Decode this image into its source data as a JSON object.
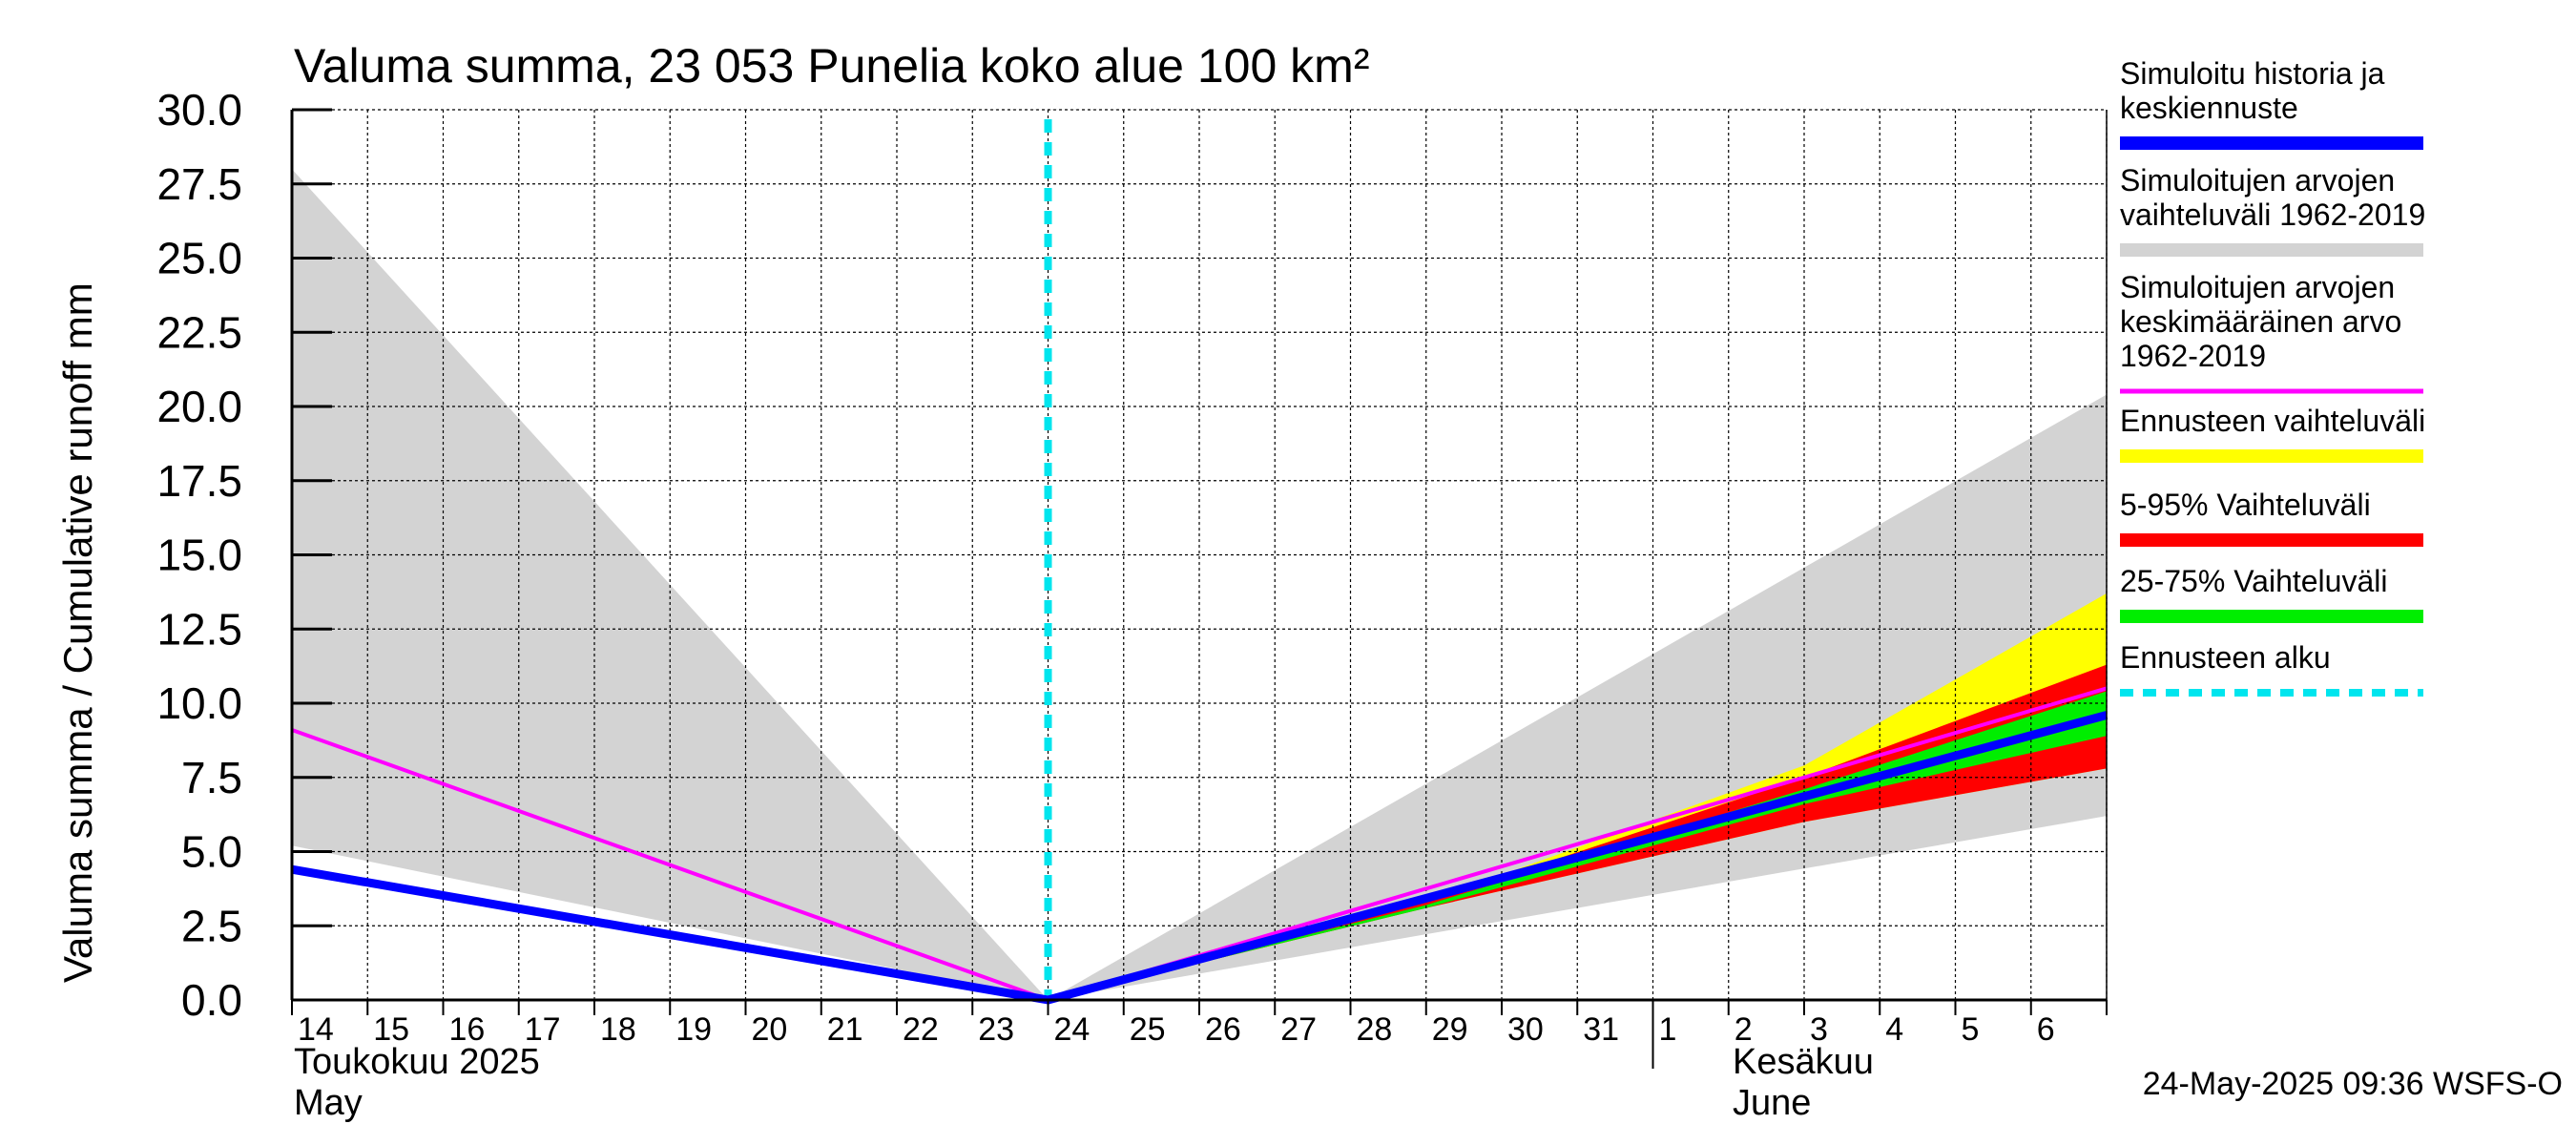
{
  "chart_data": {
    "type": "area",
    "title": "Valuma summa, 23 053 Punelia koko alue 100 km²",
    "ylabel": "Valuma summa / Cumulative runoff    mm",
    "ylim": [
      0,
      30
    ],
    "yticks": [
      "0.0",
      "2.5",
      "5.0",
      "7.5",
      "10.0",
      "12.5",
      "15.0",
      "17.5",
      "20.0",
      "22.5",
      "25.0",
      "27.5",
      "30.0"
    ],
    "xlim": [
      0,
      24
    ],
    "x_tick_labels": [
      {
        "x": 0,
        "label": "14"
      },
      {
        "x": 1,
        "label": "15"
      },
      {
        "x": 2,
        "label": "16"
      },
      {
        "x": 3,
        "label": "17"
      },
      {
        "x": 4,
        "label": "18"
      },
      {
        "x": 5,
        "label": "19"
      },
      {
        "x": 6,
        "label": "20"
      },
      {
        "x": 7,
        "label": "21"
      },
      {
        "x": 8,
        "label": "22"
      },
      {
        "x": 9,
        "label": "23"
      },
      {
        "x": 10,
        "label": "24"
      },
      {
        "x": 11,
        "label": "25"
      },
      {
        "x": 12,
        "label": "26"
      },
      {
        "x": 13,
        "label": "27"
      },
      {
        "x": 14,
        "label": "28"
      },
      {
        "x": 15,
        "label": "29"
      },
      {
        "x": 16,
        "label": "30"
      },
      {
        "x": 17,
        "label": "31"
      },
      {
        "x": 18,
        "label": "1"
      },
      {
        "x": 19,
        "label": "2"
      },
      {
        "x": 20,
        "label": "3"
      },
      {
        "x": 21,
        "label": "4"
      },
      {
        "x": 22,
        "label": "5"
      },
      {
        "x": 23,
        "label": "6"
      }
    ],
    "month_labels": {
      "may_fi": "Toukokuu  2025",
      "may_en": "May",
      "june_fi": "Kesäkuu",
      "june_en": "June",
      "june_boundary_x": 18
    },
    "forecast_start_x": 10,
    "series": [
      {
        "name": "Simuloitujen arvojen vaihteluväli 1962-2019",
        "kind": "band",
        "color": "#d3d3d3",
        "x": [
          0,
          10,
          24
        ],
        "upper": [
          28.0,
          0,
          20.4
        ],
        "lower": [
          5.2,
          0,
          6.2
        ]
      },
      {
        "name": "Ennusteen vaihteluväli",
        "kind": "band",
        "color": "#ffff00",
        "x": [
          10,
          15,
          20,
          24
        ],
        "upper": [
          0,
          3.3,
          7.9,
          13.7
        ],
        "lower": [
          0,
          3.1,
          6.0,
          7.8
        ]
      },
      {
        "name": "5-95% Vaihteluväli",
        "kind": "band",
        "color": "#ff0000",
        "x": [
          10,
          15,
          20,
          24
        ],
        "upper": [
          0,
          3.3,
          7.5,
          11.3
        ],
        "lower": [
          0,
          3.1,
          6.0,
          7.8
        ]
      },
      {
        "name": "25-75% Vaihteluväli",
        "kind": "band",
        "color": "#00ee00",
        "x": [
          10,
          15,
          20,
          24
        ],
        "upper": [
          0,
          3.2,
          7.1,
          10.4
        ],
        "lower": [
          0,
          3.1,
          6.6,
          8.9
        ]
      },
      {
        "name": "Simuloitujen arvojen keskimääräinen arvo 1962-2019",
        "kind": "line",
        "color": "#ff00ff",
        "x": [
          0,
          10,
          24
        ],
        "y": [
          9.1,
          0,
          10.5
        ]
      },
      {
        "name": "Simuloitu historia ja keskiennuste",
        "kind": "line",
        "color": "#0000ff",
        "x": [
          0,
          10,
          24
        ],
        "y": [
          4.4,
          0,
          9.6
        ]
      }
    ],
    "legend": [
      {
        "label_lines": [
          "Simuloitu historia ja",
          "keskiennuste"
        ],
        "color": "#0000ff",
        "style": "solid"
      },
      {
        "label_lines": [
          "Simuloitujen arvojen",
          "vaihteluväli 1962-2019"
        ],
        "color": "#d3d3d3",
        "style": "solid"
      },
      {
        "label_lines": [
          "Simuloitujen arvojen",
          "keskimääräinen arvo",
          "   1962-2019"
        ],
        "color": "#ff00ff",
        "style": "thin"
      },
      {
        "label_lines": [
          "Ennusteen vaihteluväli"
        ],
        "color": "#ffff00",
        "style": "solid"
      },
      {
        "label_lines": [
          "5-95% Vaihteluväli"
        ],
        "color": "#ff0000",
        "style": "solid"
      },
      {
        "label_lines": [
          "25-75% Vaihteluväli"
        ],
        "color": "#00ee00",
        "style": "solid"
      },
      {
        "label_lines": [
          "Ennusteen alku"
        ],
        "color": "#00e5ee",
        "style": "dashed"
      }
    ],
    "footer": "24-May-2025 09:36 WSFS-O"
  }
}
